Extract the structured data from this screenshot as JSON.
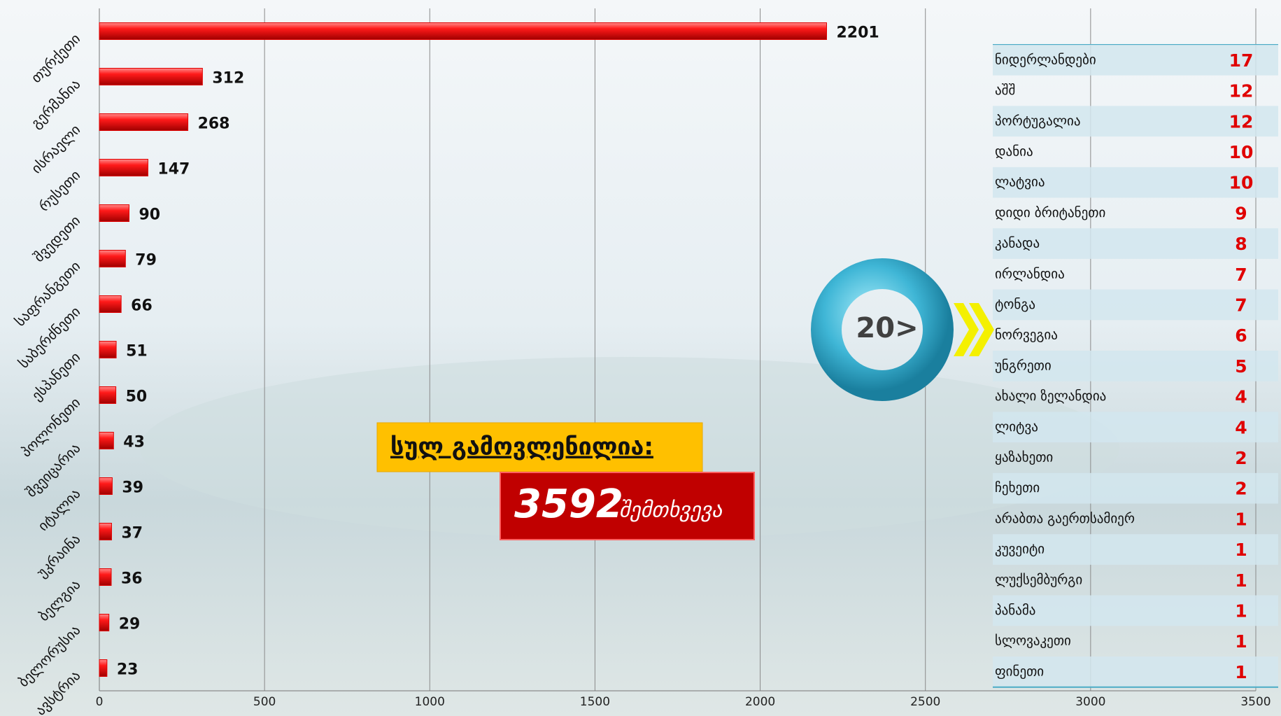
{
  "chart_data": {
    "type": "hbar",
    "categories": [
      "თურქეთი",
      "გერმანია",
      "ისრაელი",
      "რუსეთი",
      "შვედეთი",
      "საფრანგეთი",
      "საბერძნეთი",
      "ესპანეთი",
      "პოლონეთი",
      "შვეიცარია",
      "იტალია",
      "უკრაინა",
      "ბელგია",
      "ბელორუსია",
      "ავსტრია"
    ],
    "values": [
      2201,
      312,
      268,
      147,
      90,
      79,
      66,
      51,
      50,
      43,
      39,
      37,
      36,
      29,
      23
    ],
    "color": "#e00000",
    "xlim": [
      0,
      3500
    ],
    "xticks": [
      0,
      500,
      1000,
      1500,
      2000,
      2500,
      3000,
      3500
    ],
    "grid": true
  },
  "side_table": {
    "rows": [
      [
        "ნიდერლანდები",
        17
      ],
      [
        "აშშ",
        12
      ],
      [
        "პორტუგალია",
        12
      ],
      [
        "დანია",
        10
      ],
      [
        "ლატვია",
        10
      ],
      [
        "დიდი ბრიტანეთი",
        9
      ],
      [
        "კანადა",
        8
      ],
      [
        "ირლანდია",
        7
      ],
      [
        "ტონგა",
        7
      ],
      [
        "ნორვეგია",
        6
      ],
      [
        "უნგრეთი",
        5
      ],
      [
        "ახალი ზელანდია",
        4
      ],
      [
        "ლიტვა",
        4
      ],
      [
        "ყაზახეთი",
        2
      ],
      [
        "ჩეხეთი",
        2
      ],
      [
        "არაბთა გაერთსამიერ",
        1
      ],
      [
        "კუვეიტი",
        1
      ],
      [
        "ლუქსემბურგი",
        1
      ],
      [
        "პანამა",
        1
      ],
      [
        "სლოვაკეთი",
        1
      ],
      [
        "ფინეთი",
        1
      ]
    ]
  },
  "callout": {
    "total_label": "სულ გამოვლენილია:",
    "total_value": 3592,
    "total_unit": "შემთხვევა",
    "badge": "20>"
  }
}
